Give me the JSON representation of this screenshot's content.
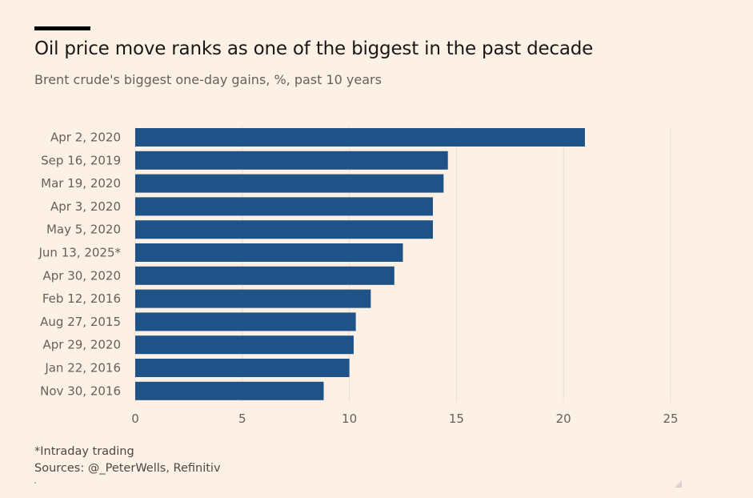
{
  "header": {
    "title": "Oil price move ranks as one of the biggest in the past decade",
    "subtitle": "Brent crude's biggest one-day gains, %, past 10 years"
  },
  "footer": {
    "footnote": "*Intraday trading",
    "source": "Sources: @_PeterWells, Refinitiv"
  },
  "colors": {
    "background": "#fdf1e6",
    "bar": "#1f5287",
    "grid": "#e8ded6",
    "tick_text": "#66605c"
  },
  "chart_data": {
    "type": "bar",
    "orientation": "horizontal",
    "title": "Oil price move ranks as one of the biggest in the past decade",
    "subtitle": "Brent crude's biggest one-day gains, %, past 10 years",
    "xlabel": "",
    "ylabel": "",
    "categories": [
      "Apr 2, 2020",
      "Sep 16, 2019",
      "Mar 19, 2020",
      "Apr 3, 2020",
      "May 5, 2020",
      "Jun 13, 2025*",
      "Apr 30, 2020",
      "Feb 12, 2016",
      "Aug 27, 2015",
      "Apr 29, 2020",
      "Jan 22, 2016",
      "Nov 30, 2016"
    ],
    "values": [
      21.0,
      14.6,
      14.4,
      13.9,
      13.9,
      12.5,
      12.1,
      11.0,
      10.3,
      10.2,
      10.0,
      8.8
    ],
    "xlim": [
      0,
      25
    ],
    "xticks": [
      0,
      5,
      10,
      15,
      20,
      25
    ],
    "grid": true,
    "legend": "none"
  }
}
